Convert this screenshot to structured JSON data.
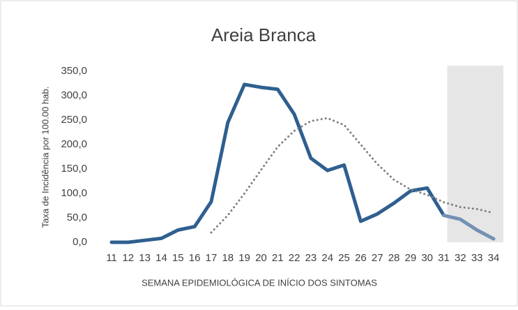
{
  "chart_data": {
    "type": "line",
    "title": "Areia Branca",
    "x_label": "SEMANA EPIDEMIOLÓGICA DE INÍCIO DOS SINTOMAS",
    "y_label": "Taxa de Incidência por 100.00 hab.",
    "categories": [
      "11",
      "12",
      "13",
      "14",
      "15",
      "16",
      "17",
      "18",
      "19",
      "20",
      "21",
      "22",
      "23",
      "24",
      "25",
      "26",
      "27",
      "28",
      "29",
      "30",
      "31",
      "32",
      "33",
      "34"
    ],
    "series": [
      {
        "color": "#2e5f8f",
        "style": "solid",
        "shaded_color": "#7391b4",
        "values": [
          0,
          0,
          4,
          8,
          25,
          32,
          83,
          245,
          323,
          317,
          313,
          262,
          172,
          147,
          158,
          43,
          58,
          80,
          105,
          111,
          55,
          47,
          25,
          7
        ]
      },
      {
        "color": "#7f7f7f",
        "style": "dotted",
        "values": [
          null,
          null,
          null,
          null,
          null,
          null,
          20,
          55,
          100,
          148,
          195,
          228,
          248,
          254,
          240,
          200,
          160,
          128,
          108,
          97,
          82,
          72,
          68,
          60
        ]
      }
    ],
    "shaded_from": "31",
    "shade_color": "#e6e6e6",
    "ylim": [
      0,
      350
    ],
    "yticks": [
      {
        "value": 0,
        "label": "0,0"
      },
      {
        "value": 50,
        "label": "50,0"
      },
      {
        "value": 100,
        "label": "100,0"
      },
      {
        "value": 150,
        "label": "150,0"
      },
      {
        "value": 200,
        "label": "200,0"
      },
      {
        "value": 250,
        "label": "250,0"
      },
      {
        "value": 300,
        "label": "300,0"
      },
      {
        "value": 350,
        "label": "350,0"
      }
    ],
    "grid": false
  }
}
